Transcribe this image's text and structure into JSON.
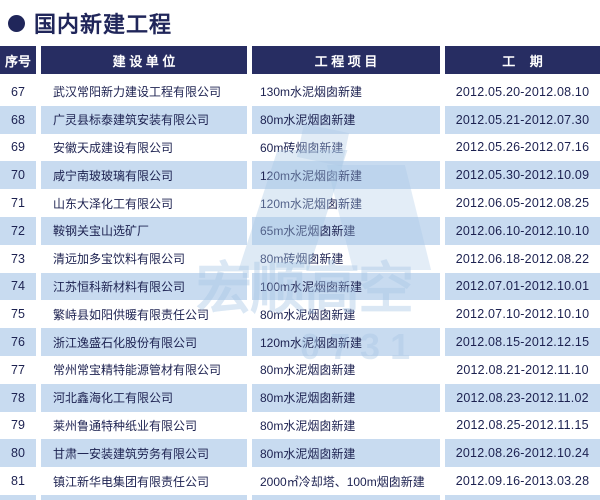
{
  "title": {
    "text": "国内新建工程"
  },
  "colors": {
    "header_bg": "#272D62",
    "stripe": "#C8DBF0",
    "title": "#20265A",
    "text": "#1C2150",
    "watermark": "#A9C7E6"
  },
  "watermark": {
    "brand": "宏顺高空",
    "digits": "0731"
  },
  "table": {
    "columns": [
      {
        "key": "no",
        "label": "序号"
      },
      {
        "key": "company",
        "label": "建 设 单 位"
      },
      {
        "key": "project",
        "label": "工 程 项 目"
      },
      {
        "key": "period",
        "label": "工    期"
      }
    ],
    "rows": [
      {
        "no": "67",
        "company": "武汉常阳新力建设工程有限公司",
        "project": "130m水泥烟囱新建",
        "period": "2012.05.20-2012.08.10"
      },
      {
        "no": "68",
        "company": "广灵县标泰建筑安装有限公司",
        "project": "80m水泥烟囱新建",
        "period": "2012.05.21-2012.07.30"
      },
      {
        "no": "69",
        "company": "安徽天成建设有限公司",
        "project": "60m砖烟囱新建",
        "period": "2012.05.26-2012.07.16"
      },
      {
        "no": "70",
        "company": "咸宁南玻玻璃有限公司",
        "project": "120m水泥烟囱新建",
        "period": "2012.05.30-2012.10.09"
      },
      {
        "no": "71",
        "company": "山东大泽化工有限公司",
        "project": "120m水泥烟囱新建",
        "period": "2012.06.05-2012.08.25"
      },
      {
        "no": "72",
        "company": "鞍钢关宝山选矿厂",
        "project": "65m水泥烟囱新建",
        "period": "2012.06.10-2012.10.10"
      },
      {
        "no": "73",
        "company": "清远加多宝饮料有限公司",
        "project": "80m砖烟囱新建",
        "period": "2012.06.18-2012.08.22"
      },
      {
        "no": "74",
        "company": "江苏恒科新材料有限公司",
        "project": "100m水泥烟囱新建",
        "period": "2012.07.01-2012.10.01"
      },
      {
        "no": "75",
        "company": "繁峙县如阳供暖有限责任公司",
        "project": "80m水泥烟囱新建",
        "period": "2012.07.10-2012.10.10"
      },
      {
        "no": "76",
        "company": "浙江逸盛石化股份有限公司",
        "project": "120m水泥烟囱新建",
        "period": "2012.08.15-2012.12.15"
      },
      {
        "no": "77",
        "company": "常州常宝精特能源管材有限公司",
        "project": "80m水泥烟囱新建",
        "period": "2012.08.21-2012.11.10"
      },
      {
        "no": "78",
        "company": "河北鑫海化工有限公司",
        "project": "80m水泥烟囱新建",
        "period": "2012.08.23-2012.11.02"
      },
      {
        "no": "79",
        "company": "莱州鲁通特种纸业有限公司",
        "project": "80m水泥烟囱新建",
        "period": "2012.08.25-2012.11.15"
      },
      {
        "no": "80",
        "company": "甘肃一安装建筑劳务有限公司",
        "project": "80m水泥烟囱新建",
        "period": "2012.08.26-2012.10.24"
      },
      {
        "no": "81",
        "company": "镇江新华电集团有限责任公司",
        "project": "2000㎡冷却塔、100m烟囱新建",
        "period": "2012.09.16-2013.03.28"
      }
    ]
  }
}
